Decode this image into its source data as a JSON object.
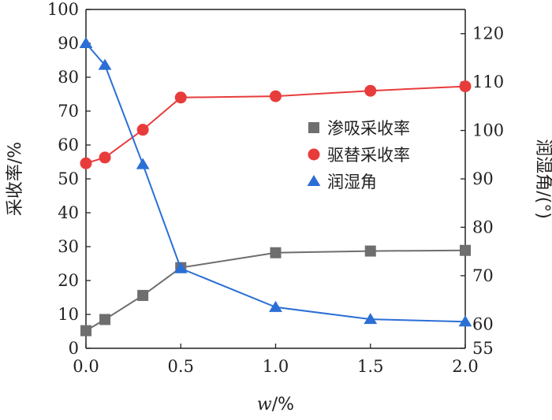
{
  "chart_data": {
    "type": "line",
    "x": [
      0.0,
      0.1,
      0.3,
      0.5,
      1.0,
      1.5,
      2.0
    ],
    "xlabel_var": "w",
    "xlabel_unit": "/%",
    "ylabel": "采收率/%",
    "y2label": "润湿角/(°)",
    "xlim": [
      0.0,
      2.0
    ],
    "ylim": [
      0,
      100
    ],
    "y2lim": [
      55,
      125
    ],
    "x_ticks": [
      "0.0",
      "0.5",
      "1.0",
      "1.5",
      "2.0"
    ],
    "y_ticks": [
      "0",
      "10",
      "20",
      "30",
      "40",
      "50",
      "60",
      "70",
      "80",
      "90",
      "100"
    ],
    "y2_ticks": [
      "55",
      "60",
      "70",
      "80",
      "90",
      "100",
      "110",
      "120"
    ],
    "grid": false,
    "legend_position": "middle-right",
    "series": [
      {
        "name": "渗吸采收率",
        "axis": "left",
        "marker": "square",
        "color": "#6e6e6e",
        "values": [
          5.2,
          8.5,
          15.6,
          23.8,
          28.2,
          28.7,
          28.9
        ]
      },
      {
        "name": "驱替采收率",
        "axis": "left",
        "marker": "circle",
        "color": "#e83c3c",
        "values": [
          54.6,
          56.3,
          64.5,
          74.0,
          74.4,
          76.0,
          77.3
        ]
      },
      {
        "name": "润湿角",
        "axis": "right",
        "marker": "triangle",
        "color": "#2b6fd6",
        "values": [
          118.0,
          113.5,
          93.0,
          71.5,
          63.5,
          61.0,
          60.5
        ]
      }
    ]
  }
}
